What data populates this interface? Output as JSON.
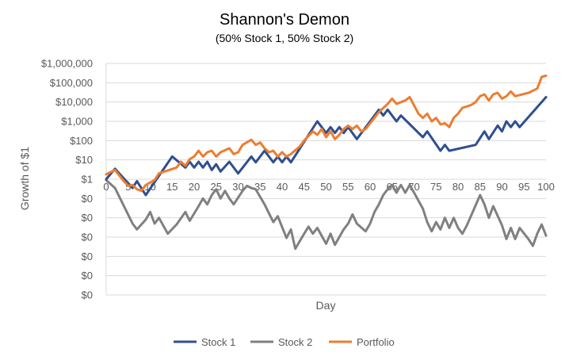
{
  "chart_data": {
    "type": "line",
    "title": "Shannon's Demon",
    "subtitle": "(50% Stock 1, 50% Stock 2)",
    "xlabel": "Day",
    "ylabel": "Growth of $1",
    "y_scale": "log",
    "ylim": [
      1e-06,
      1000000.0
    ],
    "xlim": [
      0,
      100
    ],
    "x_ticks": [
      0,
      5,
      10,
      15,
      20,
      25,
      30,
      35,
      40,
      45,
      50,
      55,
      60,
      65,
      70,
      75,
      80,
      85,
      90,
      95,
      100
    ],
    "y_ticks": [
      {
        "value": 1e-06,
        "label": "$0"
      },
      {
        "value": 1e-05,
        "label": "$0"
      },
      {
        "value": 0.0001,
        "label": "$0"
      },
      {
        "value": 0.001,
        "label": "$0"
      },
      {
        "value": 0.01,
        "label": "$0"
      },
      {
        "value": 0.1,
        "label": "$0"
      },
      {
        "value": 1,
        "label": "$1"
      },
      {
        "value": 10,
        "label": "$10"
      },
      {
        "value": 100,
        "label": "$100"
      },
      {
        "value": 1000,
        "label": "$1,000"
      },
      {
        "value": 10000,
        "label": "$10,000"
      },
      {
        "value": 100000,
        "label": "$100,000"
      },
      {
        "value": 1000000,
        "label": "$1,000,000"
      }
    ],
    "grid": true,
    "legend_position": "bottom",
    "series": [
      {
        "name": "Stock 1",
        "color": "#2f4f8f",
        "points": [
          [
            0,
            1
          ],
          [
            2,
            3.5
          ],
          [
            6,
            0.35
          ],
          [
            7,
            0.8
          ],
          [
            9,
            0.15
          ],
          [
            15,
            15
          ],
          [
            18,
            4
          ],
          [
            19,
            8
          ],
          [
            20,
            4
          ],
          [
            21,
            8
          ],
          [
            22,
            4
          ],
          [
            23,
            8
          ],
          [
            24,
            3
          ],
          [
            25,
            6
          ],
          [
            26,
            2.5
          ],
          [
            28,
            8
          ],
          [
            30,
            2
          ],
          [
            33,
            15
          ],
          [
            34,
            7.5
          ],
          [
            36,
            30
          ],
          [
            38,
            7.5
          ],
          [
            39,
            15
          ],
          [
            40,
            7.5
          ],
          [
            41,
            15
          ],
          [
            42,
            7.5
          ],
          [
            48,
            1000
          ],
          [
            50,
            250
          ],
          [
            51,
            500
          ],
          [
            52,
            250
          ],
          [
            53,
            500
          ],
          [
            54,
            250
          ],
          [
            55,
            500
          ],
          [
            57,
            120
          ],
          [
            62,
            4000
          ],
          [
            63,
            2000
          ],
          [
            64,
            4000
          ],
          [
            66,
            1000
          ],
          [
            67,
            2000
          ],
          [
            72,
            150
          ],
          [
            73,
            300
          ],
          [
            76,
            30
          ],
          [
            77,
            60
          ],
          [
            78,
            30
          ],
          [
            84,
            60
          ],
          [
            86,
            300
          ],
          [
            87,
            120
          ],
          [
            89,
            600
          ],
          [
            90,
            300
          ],
          [
            91,
            1000
          ],
          [
            92,
            500
          ],
          [
            93,
            1000
          ],
          [
            94,
            500
          ],
          [
            100,
            18000
          ]
        ]
      },
      {
        "name": "Stock 2",
        "color": "#808080",
        "points": [
          [
            0,
            0.9
          ],
          [
            2,
            0.35
          ],
          [
            6,
            0.005
          ],
          [
            7,
            0.0025
          ],
          [
            9,
            0.008
          ],
          [
            10,
            0.02
          ],
          [
            11,
            0.005
          ],
          [
            12,
            0.01
          ],
          [
            14,
            0.0015
          ],
          [
            16,
            0.0045
          ],
          [
            18,
            0.02
          ],
          [
            19,
            0.007
          ],
          [
            21,
            0.04
          ],
          [
            22,
            0.1
          ],
          [
            23,
            0.05
          ],
          [
            24,
            0.15
          ],
          [
            25,
            0.3
          ],
          [
            26,
            0.1
          ],
          [
            27,
            0.25
          ],
          [
            28,
            0.1
          ],
          [
            29,
            0.05
          ],
          [
            31,
            0.25
          ],
          [
            32,
            0.45
          ],
          [
            33,
            0.35
          ],
          [
            34,
            0.3
          ],
          [
            36,
            0.05
          ],
          [
            38,
            0.006
          ],
          [
            39,
            0.012
          ],
          [
            41,
            0.0009
          ],
          [
            42,
            0.0025
          ],
          [
            43,
            0.00025
          ],
          [
            45,
            0.0015
          ],
          [
            46,
            0.0035
          ],
          [
            47,
            0.0015
          ],
          [
            48,
            0.003
          ],
          [
            50,
            0.00045
          ],
          [
            51,
            0.0015
          ],
          [
            52,
            0.0004
          ],
          [
            54,
            0.0025
          ],
          [
            55,
            0.005
          ],
          [
            56,
            0.015
          ],
          [
            57,
            0.005
          ],
          [
            59,
            0.002
          ],
          [
            60,
            0.005
          ],
          [
            61,
            0.02
          ],
          [
            62,
            0.05
          ],
          [
            63,
            0.15
          ],
          [
            64,
            0.3
          ],
          [
            65,
            0.5
          ],
          [
            66,
            0.2
          ],
          [
            67,
            0.5
          ],
          [
            68,
            0.2
          ],
          [
            69,
            0.5
          ],
          [
            70,
            0.2
          ],
          [
            72,
            0.03
          ],
          [
            73,
            0.006
          ],
          [
            74,
            0.002
          ],
          [
            75,
            0.006
          ],
          [
            76,
            0.0025
          ],
          [
            77,
            0.01
          ],
          [
            78,
            0.003
          ],
          [
            79,
            0.01
          ],
          [
            80,
            0.003
          ],
          [
            81,
            0.0015
          ],
          [
            82,
            0.004
          ],
          [
            85,
            0.15
          ],
          [
            86,
            0.05
          ],
          [
            87,
            0.01
          ],
          [
            88,
            0.04
          ],
          [
            90,
            0.004
          ],
          [
            91,
            0.0008
          ],
          [
            92,
            0.003
          ],
          [
            93,
            0.0008
          ],
          [
            94,
            0.003
          ],
          [
            96,
            0.0008
          ],
          [
            97,
            0.00035
          ],
          [
            98,
            0.0015
          ],
          [
            99,
            0.0045
          ],
          [
            100,
            0.0012
          ]
        ]
      },
      {
        "name": "Portfolio",
        "color": "#ed7d31",
        "points": [
          [
            0,
            1.8
          ],
          [
            2,
            3
          ],
          [
            4,
            0.8
          ],
          [
            5,
            0.45
          ],
          [
            6,
            0.5
          ],
          [
            7,
            0.3
          ],
          [
            8,
            0.25
          ],
          [
            9,
            0.5
          ],
          [
            11,
            0.9
          ],
          [
            12,
            2
          ],
          [
            16,
            4
          ],
          [
            17,
            8
          ],
          [
            18,
            5
          ],
          [
            19,
            11
          ],
          [
            20,
            15
          ],
          [
            21,
            30
          ],
          [
            22,
            15
          ],
          [
            23,
            25
          ],
          [
            24,
            30
          ],
          [
            25,
            15
          ],
          [
            26,
            25
          ],
          [
            28,
            40
          ],
          [
            29,
            20
          ],
          [
            30,
            25
          ],
          [
            31,
            60
          ],
          [
            33,
            110
          ],
          [
            34,
            60
          ],
          [
            35,
            80
          ],
          [
            36,
            40
          ],
          [
            37,
            25
          ],
          [
            38,
            30
          ],
          [
            39,
            15
          ],
          [
            40,
            25
          ],
          [
            41,
            15
          ],
          [
            42,
            20
          ],
          [
            44,
            50
          ],
          [
            45,
            100
          ],
          [
            47,
            300
          ],
          [
            48,
            200
          ],
          [
            49,
            400
          ],
          [
            50,
            150
          ],
          [
            51,
            300
          ],
          [
            52,
            120
          ],
          [
            53,
            200
          ],
          [
            54,
            400
          ],
          [
            55,
            600
          ],
          [
            56,
            400
          ],
          [
            57,
            600
          ],
          [
            58,
            300
          ],
          [
            59,
            400
          ],
          [
            62,
            3000
          ],
          [
            64,
            8000
          ],
          [
            65,
            15000
          ],
          [
            66,
            8000
          ],
          [
            68,
            12000
          ],
          [
            69,
            18000
          ],
          [
            71,
            2500
          ],
          [
            72,
            1500
          ],
          [
            73,
            2500
          ],
          [
            74,
            1000
          ],
          [
            75,
            1500
          ],
          [
            76,
            700
          ],
          [
            77,
            800
          ],
          [
            78,
            500
          ],
          [
            79,
            1500
          ],
          [
            80,
            2500
          ],
          [
            81,
            5000
          ],
          [
            83,
            7000
          ],
          [
            84,
            10000
          ],
          [
            85,
            20000
          ],
          [
            86,
            25000
          ],
          [
            87,
            12000
          ],
          [
            88,
            25000
          ],
          [
            89,
            30000
          ],
          [
            90,
            15000
          ],
          [
            91,
            20000
          ],
          [
            92,
            35000
          ],
          [
            93,
            20000
          ],
          [
            96,
            30000
          ],
          [
            98,
            50000
          ],
          [
            99,
            200000
          ],
          [
            100,
            230000
          ]
        ]
      }
    ]
  }
}
